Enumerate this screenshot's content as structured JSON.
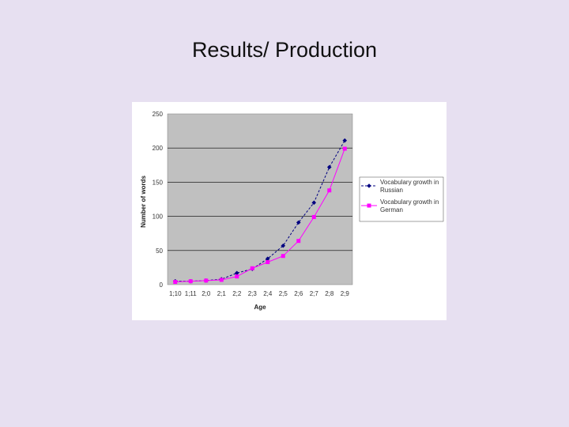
{
  "slide": {
    "title": "Results/ Production"
  },
  "chart_data": {
    "type": "line",
    "xlabel": "Age",
    "ylabel": "Number of words",
    "ylim": [
      0,
      250
    ],
    "yticks": [
      0,
      50,
      100,
      150,
      200,
      250
    ],
    "grid": true,
    "legend_position": "right",
    "plot_background": "#c0c0c0",
    "categories": [
      "1;10",
      "1;11",
      "2;0",
      "2;1",
      "2;2",
      "2;3",
      "2;4",
      "2;5",
      "2;6",
      "2;7",
      "2;8",
      "2;9"
    ],
    "series": [
      {
        "name": "Vocabulary growth in Russian",
        "color": "#000080",
        "marker": "diamond",
        "line_style": "dashed",
        "values": [
          5,
          5,
          6,
          8,
          17,
          23,
          38,
          57,
          91,
          120,
          172,
          211
        ]
      },
      {
        "name": "Vocabulary growth in German",
        "color": "#ff00ff",
        "marker": "square",
        "line_style": "solid",
        "values": [
          4,
          5,
          6,
          7,
          12,
          24,
          33,
          42,
          64,
          99,
          138,
          199
        ]
      }
    ]
  }
}
